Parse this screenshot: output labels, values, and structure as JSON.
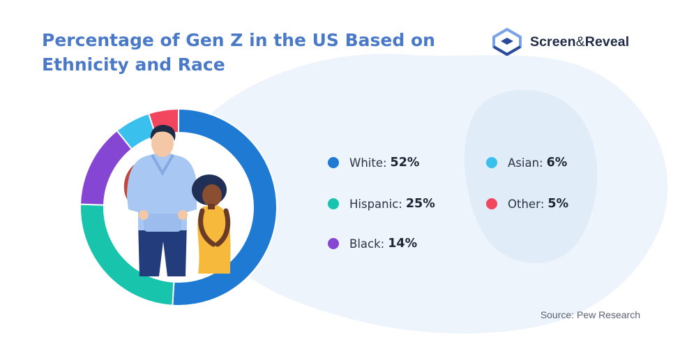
{
  "header": {
    "title": "Percentage of Gen Z in the US Based on Ethnicity and Race"
  },
  "brand": {
    "name_part1": "Screen",
    "ampersand": "&",
    "name_part2": "Reveal",
    "icon": "screen-and-reveal-logo-icon",
    "colors": {
      "mark_light": "#7aa2e6",
      "mark_dark": "#2c4a9a"
    }
  },
  "chart_data": {
    "type": "pie",
    "style": "donut",
    "title": "Percentage of Gen Z in the US Based on Ethnicity and Race",
    "categories": [
      "White",
      "Hispanic",
      "Black",
      "Asian",
      "Other"
    ],
    "values": [
      52,
      25,
      14,
      6,
      5
    ],
    "unit": "%",
    "colors": [
      "#1f7ad4",
      "#19c4ac",
      "#8546d3",
      "#3ac0ec",
      "#f2465f"
    ],
    "start_angle_deg": 0,
    "direction": "clockwise",
    "legend_position": "right",
    "center_illustration": "two-young-people-illustration"
  },
  "legend": {
    "items": [
      {
        "label": "White",
        "value": "52%"
      },
      {
        "label": "Hispanic",
        "value": "25%"
      },
      {
        "label": "Black",
        "value": "14%"
      },
      {
        "label": "Asian",
        "value": "6%"
      },
      {
        "label": "Other",
        "value": "5%"
      }
    ]
  },
  "footer": {
    "source": "Source: Pew Research"
  },
  "colors": {
    "title": "#4a79c8",
    "background_blob": "#eaf2fc",
    "background_blob_dark": "#dce9f8"
  }
}
